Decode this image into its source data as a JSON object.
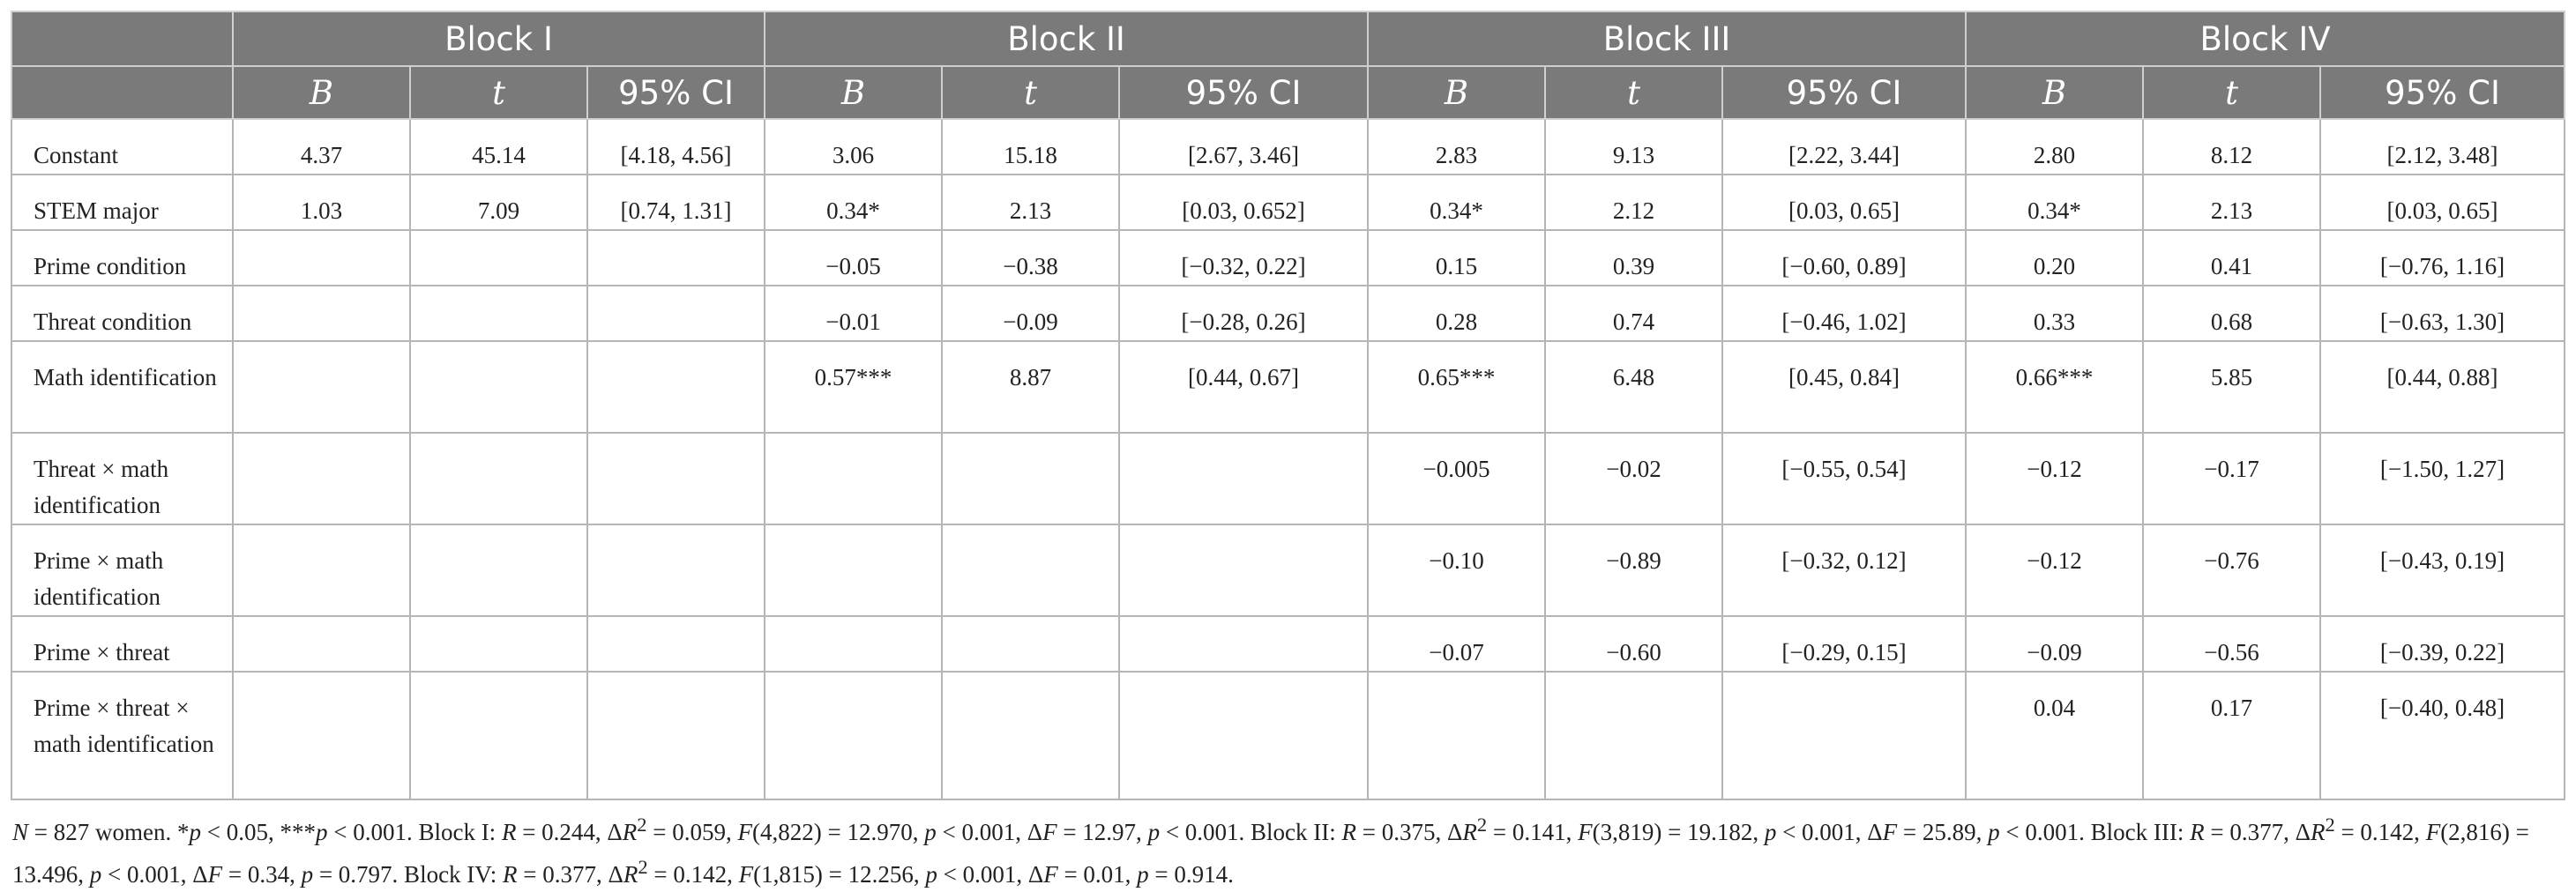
{
  "table": {
    "blocks": [
      "Block I",
      "Block II",
      "Block III",
      "Block IV"
    ],
    "stat_headers": [
      "B",
      "t",
      "95% CI"
    ],
    "rows": [
      {
        "label": "Constant",
        "cells": [
          "4.37",
          "45.14",
          "[4.18, 4.56]",
          "3.06",
          "15.18",
          "[2.67, 3.46]",
          "2.83",
          "9.13",
          "[2.22, 3.44]",
          "2.80",
          "8.12",
          "[2.12, 3.48]"
        ]
      },
      {
        "label": "STEM major",
        "cells": [
          "1.03",
          "7.09",
          "[0.74, 1.31]",
          "0.34*",
          "2.13",
          "[0.03, 0.652]",
          "0.34*",
          "2.12",
          "[0.03, 0.65]",
          "0.34*",
          "2.13",
          "[0.03, 0.65]"
        ]
      },
      {
        "label": "Prime condition",
        "cells": [
          "",
          "",
          "",
          "−0.05",
          "−0.38",
          "[−0.32, 0.22]",
          "0.15",
          "0.39",
          "[−0.60, 0.89]",
          "0.20",
          "0.41",
          "[−0.76, 1.16]"
        ]
      },
      {
        "label": "Threat condition",
        "cells": [
          "",
          "",
          "",
          "−0.01",
          "−0.09",
          "[−0.28, 0.26]",
          "0.28",
          "0.74",
          "[−0.46, 1.02]",
          "0.33",
          "0.68",
          "[−0.63, 1.30]"
        ]
      },
      {
        "label": "Math identification",
        "cells": [
          "",
          "",
          "",
          "0.57***",
          "8.87",
          "[0.44, 0.67]",
          "0.65***",
          "6.48",
          "[0.45, 0.84]",
          "0.66***",
          "5.85",
          "[0.44, 0.88]"
        ]
      },
      {
        "label": "Threat × math identification",
        "cells": [
          "",
          "",
          "",
          "",
          "",
          "",
          "−0.005",
          "−0.02",
          "[−0.55, 0.54]",
          "−0.12",
          "−0.17",
          "[−1.50, 1.27]"
        ]
      },
      {
        "label": "Prime × math identification",
        "cells": [
          "",
          "",
          "",
          "",
          "",
          "",
          "−0.10",
          "−0.89",
          "[−0.32, 0.12]",
          "−0.12",
          "−0.76",
          "[−0.43, 0.19]"
        ]
      },
      {
        "label": "Prime × threat",
        "cells": [
          "",
          "",
          "",
          "",
          "",
          "",
          "−0.07",
          "−0.60",
          "[−0.29, 0.15]",
          "−0.09",
          "−0.56",
          "[−0.39, 0.22]"
        ]
      },
      {
        "label": "Prime × threat × math identification",
        "cells": [
          "",
          "",
          "",
          "",
          "",
          "",
          "",
          "",
          "",
          "0.04",
          "0.17",
          "[−0.40, 0.48]"
        ]
      }
    ]
  },
  "footnote": {
    "p1": "= 827 women. *",
    "p2": " < 0.05, ***",
    "p3": " < 0.001. Block I: ",
    "p4": " = 0.244, Δ",
    "p5": " = 0.059, ",
    "p6": "(4,822) = 12.970, ",
    "p7": " < 0.001, Δ",
    "p8": " = 12.97, ",
    "p9": " < 0.001. Block II: ",
    "p10": " = 0.375, Δ",
    "p11": " = 0.141, ",
    "p12": "(3,819) = 19.182, ",
    "p13": " < 0.001, Δ",
    "p14": " = 25.89, ",
    "p15": " < 0.001. Block III: ",
    "p16": " = 0.377, Δ",
    "p17": " = 0.142, ",
    "p18": "(2,816) = 13.496, ",
    "p19": " < 0.001, Δ",
    "p20": " = 0.34, ",
    "p21": " = 0.797. Block IV: ",
    "p22": " = 0.377, Δ",
    "p23": " = 0.142, ",
    "p24": "(1,815) = 12.256, ",
    "p25": " < 0.001, Δ",
    "p26": " = 0.01, ",
    "p27": " = 0.914."
  },
  "colors": {
    "header_bg": "#7a7a7a",
    "header_text": "#ffffff",
    "grid": "#b5b5b5"
  }
}
